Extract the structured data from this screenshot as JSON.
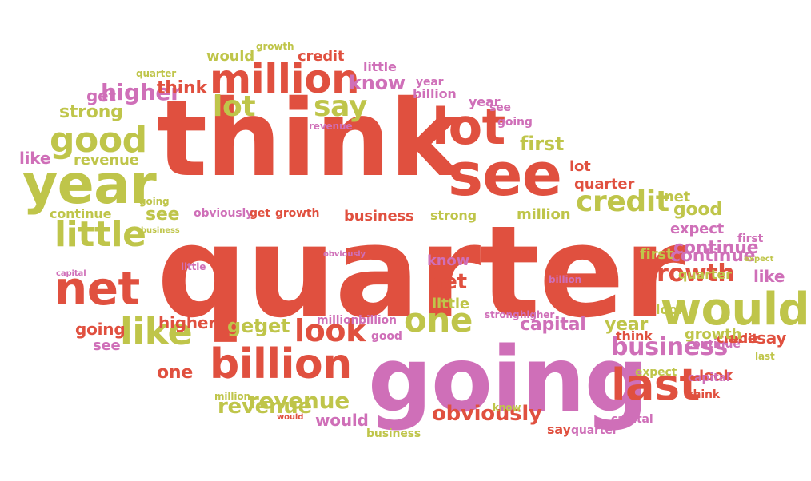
{
  "colors": {
    "red": "#e0503f",
    "pink": "#cf6fb8",
    "olive": "#bfc54a"
  },
  "words": [
    {
      "text": "think",
      "color": "red"
    },
    {
      "text": "quarter",
      "color": "red"
    },
    {
      "text": "going",
      "color": "pink"
    },
    {
      "text": "see",
      "color": "red"
    },
    {
      "text": "lot",
      "color": "red"
    },
    {
      "text": "year",
      "color": "olive"
    },
    {
      "text": "million",
      "color": "red"
    },
    {
      "text": "billion",
      "color": "red"
    },
    {
      "text": "last",
      "color": "red"
    },
    {
      "text": "would",
      "color": "olive"
    },
    {
      "text": "net",
      "color": "red"
    },
    {
      "text": "little",
      "color": "olive"
    },
    {
      "text": "one",
      "color": "olive"
    },
    {
      "text": "good",
      "color": "olive"
    },
    {
      "text": "like",
      "color": "olive"
    },
    {
      "text": "look",
      "color": "red"
    },
    {
      "text": "business",
      "color": "pink"
    },
    {
      "text": "credit",
      "color": "olive"
    },
    {
      "text": "growth",
      "color": "red"
    },
    {
      "text": "lot",
      "color": "olive"
    },
    {
      "text": "say",
      "color": "olive"
    },
    {
      "text": "higher",
      "color": "pink"
    },
    {
      "text": "revenue",
      "color": "olive"
    },
    {
      "text": "obviously",
      "color": "red"
    },
    {
      "text": "capital",
      "color": "pink"
    },
    {
      "text": "know",
      "color": "pink"
    },
    {
      "text": "first",
      "color": "olive"
    },
    {
      "text": "continue",
      "color": "pink"
    },
    {
      "text": "get",
      "color": "olive"
    },
    {
      "text": "strong",
      "color": "olive"
    },
    {
      "text": "think",
      "color": "red"
    },
    {
      "text": "get",
      "color": "pink"
    },
    {
      "text": "would",
      "color": "olive"
    },
    {
      "text": "credit",
      "color": "red"
    },
    {
      "text": "growth",
      "color": "olive"
    },
    {
      "text": "quarter",
      "color": "olive"
    },
    {
      "text": "little",
      "color": "pink"
    },
    {
      "text": "year",
      "color": "pink"
    },
    {
      "text": "billion",
      "color": "pink"
    },
    {
      "text": "year",
      "color": "pink"
    },
    {
      "text": "see",
      "color": "pink"
    },
    {
      "text": "going",
      "color": "pink"
    },
    {
      "text": "revenue",
      "color": "pink"
    },
    {
      "text": "like",
      "color": "pink"
    },
    {
      "text": "revenue",
      "color": "olive"
    },
    {
      "text": "going",
      "color": "olive"
    },
    {
      "text": "continue",
      "color": "olive"
    },
    {
      "text": "business",
      "color": "olive"
    },
    {
      "text": "see",
      "color": "olive"
    },
    {
      "text": "obviously",
      "color": "pink"
    },
    {
      "text": "get",
      "color": "red"
    },
    {
      "text": "growth",
      "color": "red"
    },
    {
      "text": "business",
      "color": "red"
    },
    {
      "text": "strong",
      "color": "olive"
    },
    {
      "text": "million",
      "color": "olive"
    },
    {
      "text": "lot",
      "color": "red"
    },
    {
      "text": "quarter",
      "color": "red"
    },
    {
      "text": "net",
      "color": "olive"
    },
    {
      "text": "good",
      "color": "olive"
    },
    {
      "text": "expect",
      "color": "pink"
    },
    {
      "text": "first",
      "color": "pink"
    },
    {
      "text": "continue",
      "color": "pink"
    },
    {
      "text": "expect",
      "color": "olive"
    },
    {
      "text": "first",
      "color": "olive"
    },
    {
      "text": "obviously",
      "color": "pink"
    },
    {
      "text": "know",
      "color": "pink"
    },
    {
      "text": "net",
      "color": "red"
    },
    {
      "text": "little",
      "color": "olive"
    },
    {
      "text": "capital",
      "color": "pink"
    },
    {
      "text": "little",
      "color": "pink"
    },
    {
      "text": "billion",
      "color": "pink"
    },
    {
      "text": "like",
      "color": "pink"
    },
    {
      "text": "look",
      "color": "olive"
    },
    {
      "text": "strong",
      "color": "pink"
    },
    {
      "text": "higher",
      "color": "pink"
    },
    {
      "text": "million",
      "color": "pink"
    },
    {
      "text": "billion",
      "color": "pink"
    },
    {
      "text": "good",
      "color": "pink"
    },
    {
      "text": "higher",
      "color": "red"
    },
    {
      "text": "going",
      "color": "red"
    },
    {
      "text": "see",
      "color": "pink"
    },
    {
      "text": "one",
      "color": "red"
    },
    {
      "text": "get",
      "color": "olive"
    },
    {
      "text": "year",
      "color": "olive"
    },
    {
      "text": "think",
      "color": "red"
    },
    {
      "text": "continue",
      "color": "pink"
    },
    {
      "text": "one",
      "color": "red"
    },
    {
      "text": "say",
      "color": "red"
    },
    {
      "text": "credit",
      "color": "red"
    },
    {
      "text": "last",
      "color": "olive"
    },
    {
      "text": "expect",
      "color": "olive"
    },
    {
      "text": "look",
      "color": "red"
    },
    {
      "text": "think",
      "color": "red"
    },
    {
      "text": "million",
      "color": "olive"
    },
    {
      "text": "revenue",
      "color": "olive"
    },
    {
      "text": "would",
      "color": "red"
    },
    {
      "text": "would",
      "color": "pink"
    },
    {
      "text": "business",
      "color": "olive"
    },
    {
      "text": "know",
      "color": "olive"
    },
    {
      "text": "say",
      "color": "red"
    },
    {
      "text": "quarter",
      "color": "pink"
    },
    {
      "text": "capital",
      "color": "pink"
    },
    {
      "text": "capital",
      "color": "pink"
    },
    {
      "text": "growth",
      "color": "olive"
    },
    {
      "text": "quarter",
      "color": "olive"
    }
  ]
}
